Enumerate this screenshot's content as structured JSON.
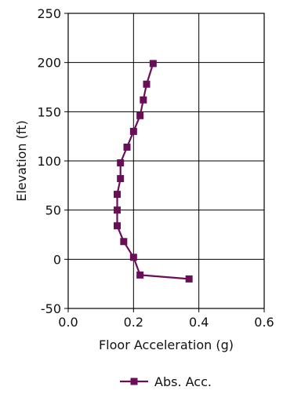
{
  "chart_data": {
    "type": "line",
    "xlabel": "Floor Acceleration (g)",
    "ylabel": "Elevation (ft)",
    "xlim": [
      0.0,
      0.6
    ],
    "ylim": [
      -50,
      250
    ],
    "x_ticks": [
      "0.0",
      "0.2",
      "0.4",
      "0.6"
    ],
    "y_ticks": [
      "-50",
      "0",
      "50",
      "100",
      "150",
      "200",
      "250"
    ],
    "x_tick_values": [
      0.0,
      0.2,
      0.4,
      0.6
    ],
    "y_tick_values": [
      -50,
      0,
      50,
      100,
      150,
      200,
      250
    ],
    "grid": true,
    "legend_position": "bottom-center",
    "series": [
      {
        "name": "Abs. Acc.",
        "color": "#6b0e5a",
        "marker": "square",
        "points": [
          {
            "x": 0.37,
            "y": -20
          },
          {
            "x": 0.22,
            "y": -16
          },
          {
            "x": 0.2,
            "y": 2
          },
          {
            "x": 0.17,
            "y": 18
          },
          {
            "x": 0.15,
            "y": 34
          },
          {
            "x": 0.15,
            "y": 50
          },
          {
            "x": 0.15,
            "y": 66
          },
          {
            "x": 0.16,
            "y": 82
          },
          {
            "x": 0.16,
            "y": 98
          },
          {
            "x": 0.18,
            "y": 114
          },
          {
            "x": 0.2,
            "y": 130
          },
          {
            "x": 0.22,
            "y": 146
          },
          {
            "x": 0.23,
            "y": 162
          },
          {
            "x": 0.24,
            "y": 178
          },
          {
            "x": 0.26,
            "y": 199
          }
        ]
      }
    ]
  }
}
